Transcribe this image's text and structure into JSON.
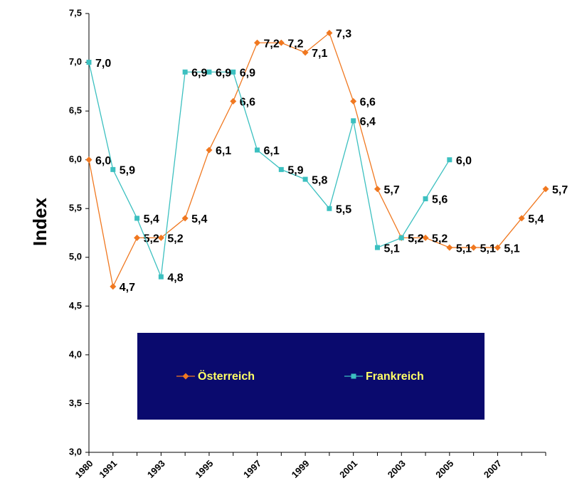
{
  "chart_data": {
    "type": "line",
    "y_label": "Index",
    "categories": [
      "1980",
      "1991",
      null,
      "1993",
      null,
      "1995",
      null,
      "1997",
      null,
      "1999",
      null,
      "2001",
      null,
      "2003",
      null,
      "2005",
      null,
      "2007",
      null,
      null
    ],
    "series": [
      {
        "name": "Österreich",
        "color": "#f07820",
        "marker": "diamond",
        "values": [
          6.0,
          4.7,
          5.2,
          5.2,
          5.4,
          6.1,
          6.6,
          7.2,
          7.2,
          7.1,
          7.3,
          6.6,
          5.7,
          5.2,
          5.2,
          5.1,
          5.1,
          5.1,
          5.4,
          5.7
        ],
        "value_labels": [
          "6,0",
          "4,7",
          "5,2",
          "5,2",
          "5,4",
          "6,1",
          "6,6",
          "7,2",
          "7,2",
          "7,1",
          "7,3",
          "6,6",
          "5,7",
          "5,2",
          "5,2",
          "5,1",
          "5,1",
          "5,1",
          "5,4",
          "5,7"
        ]
      },
      {
        "name": "Frankreich",
        "color": "#3cc0c0",
        "marker": "square",
        "values": [
          7.0,
          5.9,
          5.4,
          4.8,
          6.9,
          6.9,
          6.9,
          6.1,
          5.9,
          5.8,
          5.5,
          6.4,
          5.1,
          5.2,
          5.6,
          6.0,
          null,
          null,
          null,
          null
        ],
        "value_labels": [
          "7,0",
          "5,9",
          "5,4",
          "4,8",
          "6,9",
          "6,9",
          "6,9",
          "6,1",
          "5,9",
          "5,8",
          "5,5",
          "6,4",
          "5,1",
          "5,2",
          "5,6",
          "6,0",
          null,
          null,
          null,
          null
        ]
      }
    ],
    "ylim": [
      3.0,
      7.5
    ],
    "yticks": [
      {
        "value": 3.0,
        "label": "3,0"
      },
      {
        "value": 3.5,
        "label": "3,5"
      },
      {
        "value": 4.0,
        "label": "4,0"
      },
      {
        "value": 4.5,
        "label": "4,5"
      },
      {
        "value": 5.0,
        "label": "5,0"
      },
      {
        "value": 5.5,
        "label": "5,5"
      },
      {
        "value": 6.0,
        "label": "6,0"
      },
      {
        "value": 6.5,
        "label": "6,5"
      },
      {
        "value": 7.0,
        "label": "7,0"
      },
      {
        "value": 7.5,
        "label": "7,5"
      }
    ],
    "grid": false,
    "legend_position": "lower-center",
    "legend_background": "#0a0a6e",
    "legend_text_color": "#ffff66"
  }
}
